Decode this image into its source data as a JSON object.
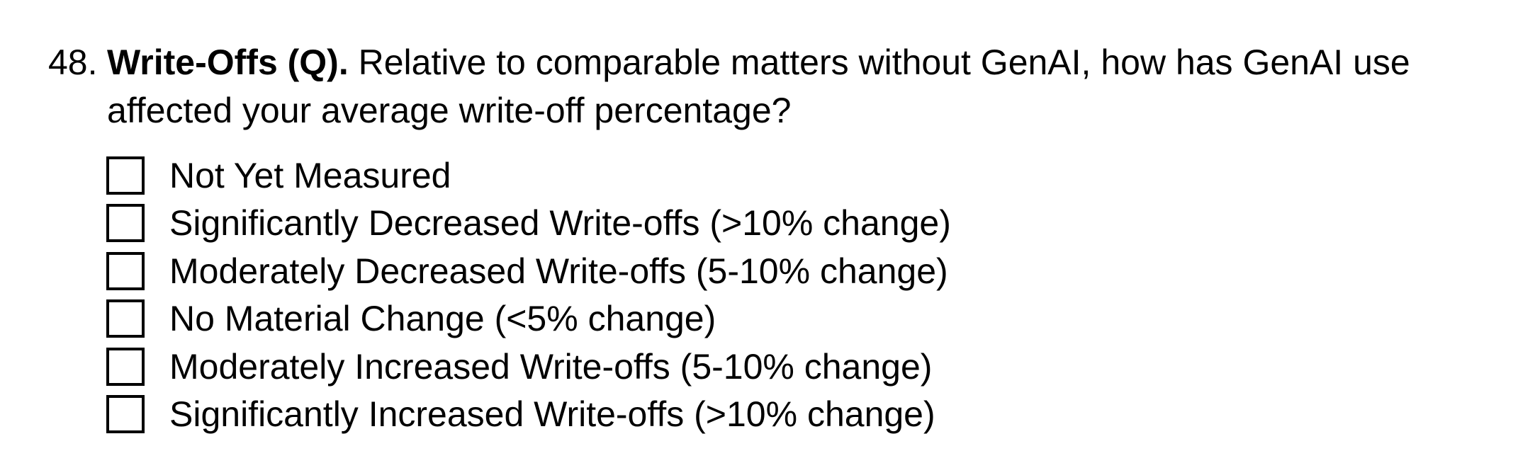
{
  "question": {
    "number": "48.",
    "title": "Write-Offs (Q).",
    "text_line1": " Relative to comparable matters without GenAI, how has GenAI use",
    "text_line2": "affected your average write-off percentage?"
  },
  "options": [
    {
      "label": "Not Yet Measured",
      "checked": false
    },
    {
      "label": "Significantly Decreased Write-offs (>10% change)",
      "checked": false
    },
    {
      "label": "Moderately Decreased Write-offs (5-10% change)",
      "checked": false
    },
    {
      "label": "No Material Change (<5% change)",
      "checked": false
    },
    {
      "label": "Moderately Increased Write-offs (5-10% change)",
      "checked": false
    },
    {
      "label": "Significantly Increased Write-offs (>10% change)",
      "checked": false
    }
  ]
}
